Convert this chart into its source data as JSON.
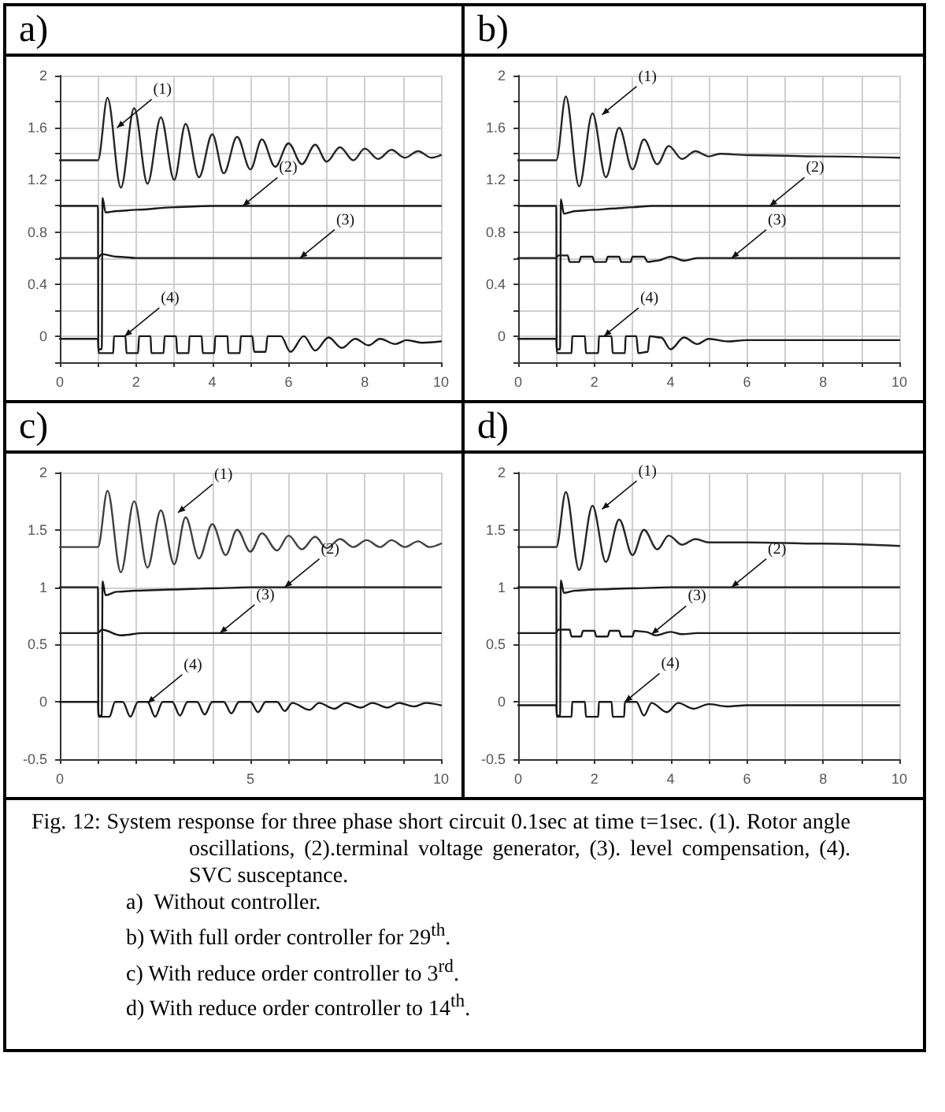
{
  "chart_data": [
    {
      "type": "line",
      "title": "a)",
      "xlim": [
        0,
        10
      ],
      "xticks": [
        0,
        {
          "value": 1,
          "label": null
        },
        2,
        {
          "value": 3,
          "label": null
        },
        4,
        {
          "value": 5,
          "label": null
        },
        6,
        {
          "value": 7,
          "label": null
        },
        8,
        {
          "value": 9,
          "label": null
        },
        10
      ],
      "ylim": [
        -0.2,
        2
      ],
      "yticks": [
        {
          "value": -0.2,
          "label": null
        },
        0,
        {
          "value": 0.2,
          "label": null
        },
        0.4,
        {
          "value": 0.6,
          "label": null
        },
        0.8,
        {
          "value": 1,
          "label": null
        },
        1.2,
        {
          "value": 1.4,
          "label": null
        },
        1.6,
        {
          "value": 1.8,
          "label": null
        },
        2
      ],
      "grid": true,
      "marker": "none",
      "line_style": "solid",
      "series": [
        {
          "color": "#262626",
          "x": [
            0,
            1,
            1.25,
            1.6,
            1.95,
            2.3,
            2.65,
            3.0,
            3.3,
            3.65,
            4.0,
            4.3,
            4.65,
            5.0,
            5.3,
            5.65,
            6.0,
            6.35,
            6.7,
            7.0,
            7.35,
            7.7,
            8.0,
            8.35,
            8.7,
            9.05,
            9.4,
            9.75,
            10
          ],
          "values": [
            1.35,
            1.35,
            1.83,
            1.14,
            1.75,
            1.17,
            1.68,
            1.2,
            1.63,
            1.22,
            1.55,
            1.25,
            1.53,
            1.28,
            1.51,
            1.3,
            1.48,
            1.32,
            1.47,
            1.34,
            1.45,
            1.35,
            1.44,
            1.36,
            1.43,
            1.37,
            1.42,
            1.37,
            1.39
          ]
        },
        {
          "color": "#1a1a1a",
          "x": [
            0,
            1,
            1.01,
            1.1,
            1.12,
            1.2,
            1.5,
            2,
            3,
            4,
            5,
            6,
            8,
            10
          ],
          "values": [
            1,
            1,
            -0.1,
            -0.1,
            1.06,
            0.95,
            0.96,
            0.97,
            0.99,
            1,
            1,
            1,
            1,
            1
          ]
        },
        {
          "color": "#1a1a1a",
          "x": [
            0,
            1,
            1.1,
            1.5,
            2,
            3,
            10
          ],
          "values": [
            0.6,
            0.6,
            0.63,
            0.61,
            0.6,
            0.6,
            0.6
          ]
        },
        {
          "color": "#1a1a1a",
          "x": [
            0,
            1,
            1.02,
            1.4,
            1.42,
            1.72,
            1.75,
            2.05,
            2.08,
            2.38,
            2.4,
            2.72,
            2.75,
            3.05,
            3.08,
            3.38,
            3.4,
            3.72,
            3.75,
            4.05,
            4.08,
            4.4,
            4.42,
            4.72,
            4.75,
            5.05,
            5.1,
            5.4,
            5.45,
            5.8,
            6.05,
            6.4,
            6.7,
            7.05,
            7.4,
            7.75,
            8.1,
            8.4,
            8.8,
            9.1,
            9.5,
            10
          ],
          "values": [
            -0.02,
            -0.02,
            -0.13,
            -0.13,
            0,
            0,
            -0.13,
            -0.13,
            0,
            0,
            -0.13,
            -0.13,
            0,
            0,
            -0.13,
            -0.13,
            0,
            0,
            -0.13,
            -0.13,
            0,
            0,
            -0.13,
            -0.13,
            0,
            0,
            -0.12,
            -0.12,
            0,
            0,
            -0.12,
            0,
            -0.11,
            -0.01,
            -0.09,
            -0.02,
            -0.07,
            -0.02,
            -0.06,
            -0.03,
            -0.05,
            -0.04
          ]
        }
      ],
      "annotations": [
        {
          "text": "(1)",
          "x": 1.5,
          "y": 1.6
        },
        {
          "text": "(2)",
          "x": 4.8,
          "y": 1.0
        },
        {
          "text": "(3)",
          "x": 6.3,
          "y": 0.6
        },
        {
          "text": "(4)",
          "x": 1.7,
          "y": 0.0
        }
      ]
    },
    {
      "type": "line",
      "title": "b)",
      "xlim": [
        0,
        10
      ],
      "xticks": [
        0,
        {
          "value": 1,
          "label": null
        },
        2,
        {
          "value": 3,
          "label": null
        },
        4,
        {
          "value": 5,
          "label": null
        },
        6,
        {
          "value": 7,
          "label": null
        },
        8,
        {
          "value": 9,
          "label": null
        },
        10
      ],
      "ylim": [
        -0.2,
        2
      ],
      "yticks": [
        {
          "value": -0.2,
          "label": null
        },
        0,
        {
          "value": 0.2,
          "label": null
        },
        0.4,
        {
          "value": 0.6,
          "label": null
        },
        0.8,
        {
          "value": 1,
          "label": null
        },
        1.2,
        {
          "value": 1.4,
          "label": null
        },
        1.6,
        {
          "value": 1.8,
          "label": null
        },
        2
      ],
      "grid": true,
      "marker": "none",
      "line_style": "solid",
      "series": [
        {
          "color": "#262626",
          "x": [
            0,
            1,
            1.25,
            1.6,
            1.95,
            2.3,
            2.65,
            3.0,
            3.3,
            3.65,
            3.95,
            4.3,
            4.65,
            5.0,
            5.3,
            6,
            8,
            10
          ],
          "values": [
            1.35,
            1.35,
            1.84,
            1.15,
            1.71,
            1.22,
            1.6,
            1.28,
            1.51,
            1.32,
            1.46,
            1.36,
            1.42,
            1.38,
            1.4,
            1.39,
            1.38,
            1.37
          ]
        },
        {
          "color": "#1a1a1a",
          "x": [
            0,
            1,
            1.01,
            1.1,
            1.12,
            1.2,
            1.5,
            2,
            2.5,
            3,
            3.5,
            4,
            5,
            10
          ],
          "values": [
            1,
            1,
            -0.1,
            -0.1,
            1.05,
            0.94,
            0.96,
            0.97,
            0.98,
            0.99,
            1,
            1,
            1,
            1
          ]
        },
        {
          "color": "#1a1a1a",
          "x": [
            0,
            1,
            1.05,
            1.3,
            1.35,
            1.6,
            1.65,
            1.95,
            2.0,
            2.3,
            2.35,
            2.65,
            2.7,
            2.95,
            3.0,
            3.3,
            3.4,
            3.65,
            4.0,
            4.35,
            4.7,
            5.5,
            10
          ],
          "values": [
            0.6,
            0.6,
            0.62,
            0.62,
            0.57,
            0.57,
            0.61,
            0.61,
            0.57,
            0.57,
            0.61,
            0.61,
            0.57,
            0.57,
            0.61,
            0.61,
            0.57,
            0.58,
            0.61,
            0.58,
            0.6,
            0.6,
            0.6
          ]
        },
        {
          "color": "#1a1a1a",
          "x": [
            0,
            1,
            1.02,
            1.4,
            1.42,
            1.75,
            1.78,
            2.1,
            2.12,
            2.45,
            2.48,
            2.8,
            2.82,
            3.1,
            3.15,
            3.4,
            3.45,
            3.75,
            4.0,
            4.35,
            4.7,
            5.0,
            5.5,
            6,
            7,
            10
          ],
          "values": [
            -0.02,
            -0.02,
            -0.13,
            -0.13,
            0,
            0,
            -0.13,
            -0.13,
            0,
            0,
            -0.13,
            -0.13,
            0,
            0,
            -0.13,
            -0.12,
            0,
            -0.01,
            -0.1,
            -0.01,
            -0.06,
            -0.02,
            -0.04,
            -0.03,
            -0.03,
            -0.03
          ]
        }
      ],
      "annotations": [
        {
          "text": "(1)",
          "x": 2.2,
          "y": 1.7
        },
        {
          "text": "(2)",
          "x": 6.6,
          "y": 1.0
        },
        {
          "text": "(3)",
          "x": 5.6,
          "y": 0.6
        },
        {
          "text": "(4)",
          "x": 2.25,
          "y": 0.0
        }
      ]
    },
    {
      "type": "line",
      "title": "c)",
      "xlim": [
        0,
        10
      ],
      "xticks": [
        0,
        {
          "value": 1,
          "label": null
        },
        {
          "value": 2,
          "label": null
        },
        {
          "value": 3,
          "label": null
        },
        {
          "value": 4,
          "label": null
        },
        5,
        {
          "value": 6,
          "label": null
        },
        {
          "value": 7,
          "label": null
        },
        {
          "value": 8,
          "label": null
        },
        {
          "value": 9,
          "label": null
        },
        10
      ],
      "ylim": [
        -0.5,
        2
      ],
      "yticks": [
        -0.5,
        0,
        0.5,
        1,
        1.5,
        2
      ],
      "grid": true,
      "marker": "none",
      "line_style": "solid",
      "series": [
        {
          "color": "#404040",
          "x": [
            0,
            1,
            1.25,
            1.6,
            1.95,
            2.3,
            2.65,
            3.0,
            3.3,
            3.65,
            4.0,
            4.35,
            4.65,
            5.0,
            5.3,
            5.7,
            6.0,
            6.35,
            6.7,
            7.0,
            7.35,
            7.7,
            8.05,
            8.4,
            8.7,
            9.05,
            9.4,
            9.7,
            10
          ],
          "values": [
            1.35,
            1.35,
            1.84,
            1.13,
            1.75,
            1.17,
            1.67,
            1.2,
            1.61,
            1.25,
            1.55,
            1.28,
            1.5,
            1.31,
            1.47,
            1.32,
            1.45,
            1.33,
            1.44,
            1.34,
            1.42,
            1.35,
            1.41,
            1.35,
            1.41,
            1.35,
            1.4,
            1.35,
            1.38
          ]
        },
        {
          "color": "#1a1a1a",
          "x": [
            0,
            1,
            1.01,
            1.1,
            1.12,
            1.2,
            1.5,
            2,
            3,
            4,
            5,
            10
          ],
          "values": [
            1,
            1,
            -0.12,
            -0.12,
            1.05,
            0.93,
            0.96,
            0.97,
            0.98,
            0.99,
            1,
            1
          ]
        },
        {
          "color": "#1a1a1a",
          "x": [
            0,
            1,
            1.1,
            1.6,
            2.2,
            10
          ],
          "values": [
            0.6,
            0.6,
            0.63,
            0.58,
            0.6,
            0.6
          ]
        },
        {
          "color": "#1a1a1a",
          "x": [
            0,
            1,
            1.02,
            1.3,
            1.45,
            1.65,
            1.85,
            2.05,
            2.3,
            2.5,
            2.7,
            2.95,
            3.15,
            3.35,
            3.6,
            3.8,
            4.0,
            4.3,
            4.5,
            4.7,
            5.0,
            5.2,
            5.4,
            5.7,
            5.9,
            6.1,
            6.55,
            6.8,
            7.2,
            7.5,
            7.9,
            8.2,
            8.6,
            8.9,
            9.3,
            9.6,
            10
          ],
          "values": [
            0,
            0,
            -0.13,
            -0.13,
            0,
            0,
            -0.13,
            0,
            0,
            -0.13,
            0,
            0,
            -0.12,
            0,
            0,
            -0.11,
            0,
            0,
            -0.1,
            0,
            0,
            -0.09,
            0,
            0,
            -0.08,
            -0.01,
            -0.07,
            -0.01,
            -0.06,
            -0.01,
            -0.05,
            -0.01,
            -0.05,
            -0.01,
            -0.04,
            -0.01,
            -0.03
          ]
        }
      ],
      "annotations": [
        {
          "text": "(1)",
          "x": 3.1,
          "y": 1.65
        },
        {
          "text": "(2)",
          "x": 5.9,
          "y": 1.0
        },
        {
          "text": "(3)",
          "x": 4.2,
          "y": 0.6
        },
        {
          "text": "(4)",
          "x": 2.3,
          "y": -0.01
        }
      ]
    },
    {
      "type": "line",
      "title": "d)",
      "xlim": [
        0,
        10
      ],
      "xticks": [
        0,
        {
          "value": 1,
          "label": null
        },
        2,
        {
          "value": 3,
          "label": null
        },
        4,
        {
          "value": 5,
          "label": null
        },
        6,
        {
          "value": 7,
          "label": null
        },
        8,
        {
          "value": 9,
          "label": null
        },
        10
      ],
      "ylim": [
        -0.5,
        2
      ],
      "yticks": [
        -0.5,
        0,
        0.5,
        1,
        1.5,
        2
      ],
      "grid": true,
      "marker": "none",
      "line_style": "solid",
      "series": [
        {
          "color": "#262626",
          "x": [
            0,
            1,
            1.25,
            1.6,
            1.95,
            2.3,
            2.65,
            3.0,
            3.3,
            3.65,
            3.95,
            4.3,
            4.65,
            5.0,
            6,
            8,
            10
          ],
          "values": [
            1.35,
            1.35,
            1.83,
            1.15,
            1.71,
            1.22,
            1.59,
            1.28,
            1.5,
            1.33,
            1.45,
            1.37,
            1.42,
            1.39,
            1.39,
            1.38,
            1.36
          ]
        },
        {
          "color": "#1a1a1a",
          "x": [
            0,
            1,
            1.01,
            1.1,
            1.12,
            1.2,
            1.5,
            2,
            3,
            4,
            5,
            10
          ],
          "values": [
            1,
            1,
            -0.12,
            -0.12,
            1.06,
            0.95,
            0.97,
            0.98,
            0.99,
            1,
            1,
            1
          ]
        },
        {
          "color": "#1a1a1a",
          "x": [
            0,
            1,
            1.05,
            1.35,
            1.4,
            1.65,
            1.7,
            2.0,
            2.05,
            2.35,
            2.4,
            2.65,
            2.7,
            3.0,
            3.05,
            3.35,
            3.6,
            4.0,
            4.3,
            4.7,
            10
          ],
          "values": [
            0.6,
            0.6,
            0.63,
            0.63,
            0.57,
            0.57,
            0.62,
            0.62,
            0.57,
            0.57,
            0.62,
            0.62,
            0.57,
            0.57,
            0.62,
            0.61,
            0.58,
            0.61,
            0.59,
            0.6,
            0.6
          ]
        },
        {
          "color": "#1a1a1a",
          "x": [
            0,
            1,
            1.02,
            1.4,
            1.42,
            1.75,
            1.78,
            2.1,
            2.12,
            2.45,
            2.48,
            2.78,
            2.8,
            3.1,
            3.3,
            3.5,
            3.9,
            4.2,
            4.6,
            5.0,
            5.5,
            6,
            10
          ],
          "values": [
            -0.03,
            -0.03,
            -0.13,
            -0.13,
            0,
            0,
            -0.13,
            -0.13,
            0,
            0,
            -0.13,
            -0.13,
            0,
            0,
            -0.12,
            -0.01,
            -0.09,
            -0.01,
            -0.06,
            -0.02,
            -0.04,
            -0.03,
            -0.03
          ]
        }
      ],
      "annotations": [
        {
          "text": "(1)",
          "x": 2.2,
          "y": 1.68
        },
        {
          "text": "(2)",
          "x": 5.6,
          "y": 1.0
        },
        {
          "text": "(3)",
          "x": 3.5,
          "y": 0.59
        },
        {
          "text": "(4)",
          "x": 2.8,
          "y": 0.0
        },
        "Fig. 12: System response for three phase short circuit 0.1sec at time t=1sec. (1). Rotor angle oscillations, (2).terminal voltage generator, (3). level compensation, (4). SVC susceptance.",
        "a)  Without controller.",
        "b) With full order controller for 29$^{th}$.",
        "c) With reduce order controller to 3$^{rd}$.",
        "d) With reduce order controller to 14$^{th}$."
      ]
    }
  ]
}
